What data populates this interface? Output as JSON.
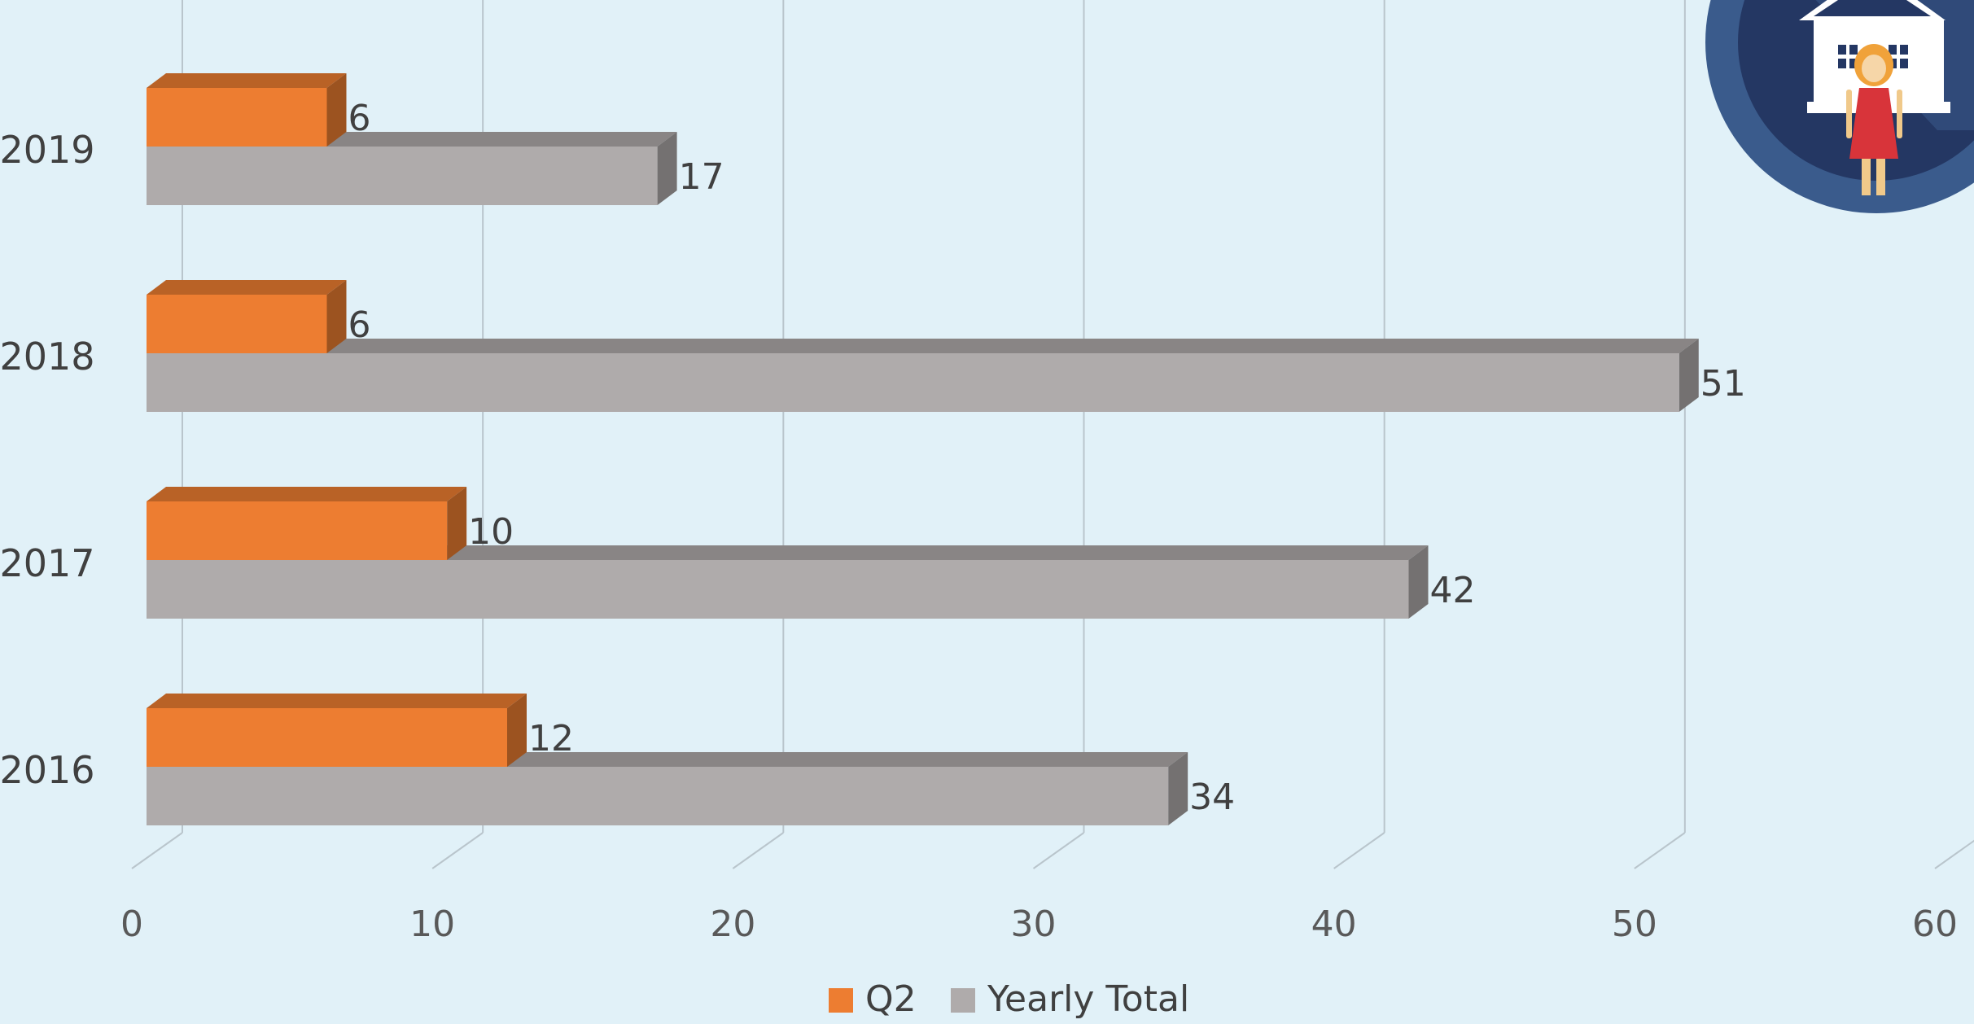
{
  "chart_data": {
    "type": "bar",
    "orientation": "horizontal",
    "categories": [
      "2016",
      "2017",
      "2018",
      "2019"
    ],
    "series": [
      {
        "name": "Q2",
        "values": [
          12,
          10,
          6,
          6
        ]
      },
      {
        "name": "Yearly Total",
        "values": [
          34,
          42,
          51,
          17
        ]
      }
    ],
    "data_labels": true,
    "xlim": [
      0,
      60
    ],
    "x_ticks": [
      "0",
      "10",
      "20",
      "30",
      "40",
      "50",
      "60"
    ],
    "grid": true,
    "legend": "bottom",
    "style": "3d-clustered-bar"
  },
  "colors": {
    "background": "#e1f1f8",
    "q2": "#ed7d31",
    "yearly_total": "#afabab",
    "gridline": "#b9c5cc",
    "text": "#404040",
    "badge": "#2f4a78"
  },
  "decoration": {
    "badge_icon": "house-with-woman-icon"
  }
}
